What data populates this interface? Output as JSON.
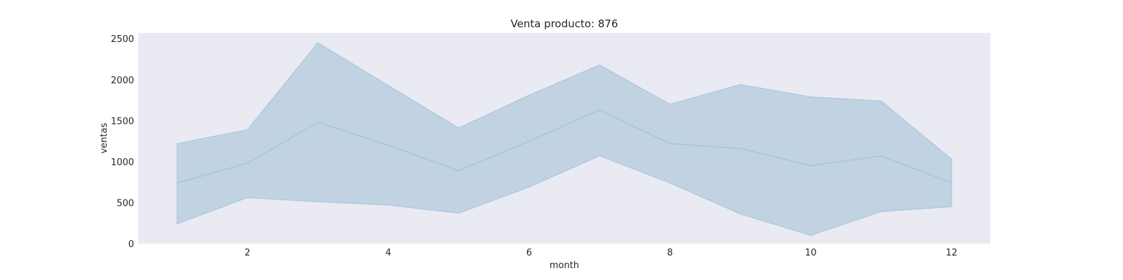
{
  "chart_data": {
    "type": "area",
    "title": "Venta producto: 876",
    "xlabel": "month",
    "ylabel": "ventas",
    "x": [
      1,
      2,
      3,
      4,
      5,
      6,
      7,
      8,
      9,
      10,
      11,
      12
    ],
    "series": [
      {
        "values": [
          740,
          980,
          1480,
          1200,
          890,
          1250,
          1630,
          1220,
          1160,
          950,
          1070,
          740
        ],
        "ci_upper": [
          1220,
          1390,
          2450,
          1930,
          1410,
          1810,
          2180,
          1700,
          1940,
          1790,
          1740,
          1030
        ],
        "ci_lower": [
          240,
          560,
          510,
          470,
          370,
          690,
          1070,
          740,
          360,
          100,
          390,
          450
        ]
      }
    ],
    "xticks": [
      2,
      4,
      6,
      8,
      10,
      12
    ],
    "yticks": [
      0,
      500,
      1000,
      1500,
      2000,
      2500
    ],
    "xlim": [
      0.45,
      12.55
    ],
    "ylim": [
      0,
      2570
    ],
    "grid": false,
    "colors": {
      "background": "#eaeaf2",
      "line": "#a6c4de",
      "band": "#c1d2e3"
    }
  }
}
